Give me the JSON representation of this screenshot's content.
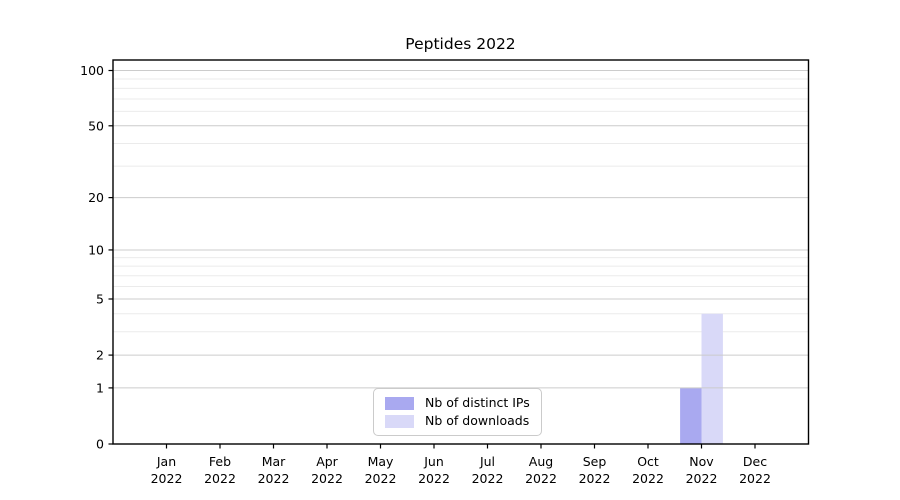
{
  "chart_data": {
    "type": "bar",
    "title": "Peptides 2022",
    "categories": [
      "Jan",
      "Feb",
      "Mar",
      "Apr",
      "May",
      "Jun",
      "Jul",
      "Aug",
      "Sep",
      "Oct",
      "Nov",
      "Dec"
    ],
    "category_sublabel": "2022",
    "series": [
      {
        "name": "Nb of distinct IPs",
        "color": "#a9a9f0",
        "values": [
          0,
          0,
          0,
          0,
          0,
          0,
          0,
          0,
          0,
          0,
          1,
          0
        ]
      },
      {
        "name": "Nb of downloads",
        "color": "#d9d9f8",
        "values": [
          0,
          0,
          0,
          0,
          0,
          0,
          0,
          0,
          0,
          0,
          4,
          0
        ]
      }
    ],
    "yscale": "log10(1+v)",
    "ylim": [
      0,
      114
    ],
    "yticks": [
      0,
      1,
      2,
      5,
      10,
      20,
      50,
      100
    ],
    "yticks_minor": [
      3,
      4,
      6,
      7,
      8,
      9,
      30,
      40,
      60,
      70,
      80,
      90
    ],
    "grid": {
      "major_color": "#cccccc",
      "minor_color": "#ebebeb"
    },
    "axis_color": "#000000",
    "legend": {
      "location": "lower center",
      "labels": [
        "Nb of distinct IPs",
        "Nb of downloads"
      ]
    }
  }
}
